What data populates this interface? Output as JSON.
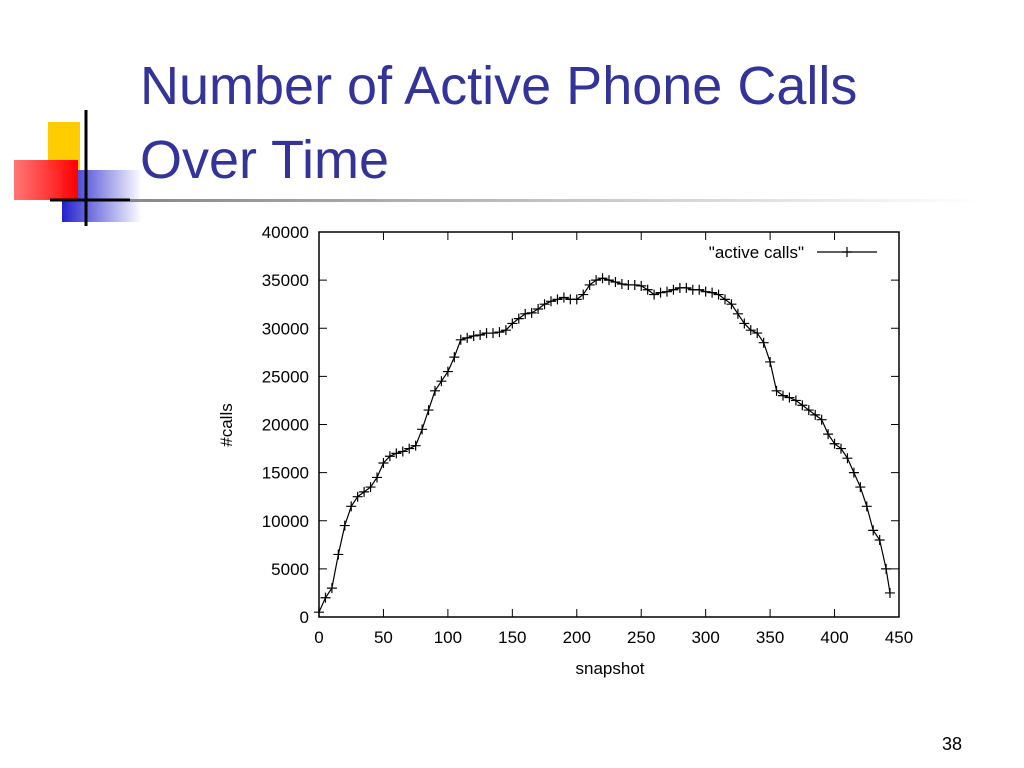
{
  "slide": {
    "title_lines": [
      "Number of Active Phone Calls",
      "Over Time"
    ],
    "page_number": "38"
  },
  "chart_data": {
    "type": "line",
    "xlabel": "snapshot",
    "ylabel": "#calls",
    "x": [
      0,
      5,
      10,
      15,
      20,
      25,
      30,
      35,
      40,
      45,
      50,
      55,
      60,
      65,
      70,
      75,
      80,
      85,
      90,
      95,
      100,
      105,
      110,
      115,
      120,
      125,
      130,
      135,
      140,
      145,
      150,
      155,
      160,
      165,
      170,
      175,
      180,
      185,
      190,
      195,
      200,
      205,
      210,
      215,
      220,
      225,
      230,
      235,
      240,
      245,
      250,
      255,
      260,
      265,
      270,
      275,
      280,
      285,
      290,
      295,
      300,
      305,
      310,
      315,
      320,
      325,
      330,
      335,
      340,
      345,
      350,
      355,
      360,
      365,
      370,
      375,
      380,
      385,
      390,
      395,
      400,
      405,
      410,
      415,
      420,
      425,
      430,
      435,
      440,
      443
    ],
    "series": [
      {
        "name": "\"active calls\"",
        "color": "#000000",
        "values": [
          500,
          2000,
          3000,
          6500,
          9500,
          11500,
          12500,
          13000,
          13500,
          14500,
          16000,
          16700,
          17000,
          17200,
          17500,
          17800,
          19500,
          21500,
          23500,
          24500,
          25500,
          27000,
          28800,
          29000,
          29200,
          29300,
          29500,
          29500,
          29600,
          29800,
          30500,
          31000,
          31500,
          31600,
          32000,
          32500,
          32800,
          33000,
          33200,
          33000,
          33000,
          33500,
          34500,
          35000,
          35200,
          35000,
          34800,
          34600,
          34500,
          34500,
          34400,
          34000,
          33500,
          33700,
          33800,
          34000,
          34200,
          34200,
          34000,
          34000,
          33800,
          33700,
          33500,
          33000,
          32500,
          31500,
          30500,
          29800,
          29500,
          28500,
          26500,
          23500,
          23000,
          22800,
          22500,
          22000,
          21500,
          21000,
          20500,
          19000,
          18000,
          17500,
          16500,
          15000,
          13500,
          11500,
          9000,
          8000,
          5000,
          2500
        ]
      }
    ],
    "xlim": [
      0,
      450
    ],
    "xticks": [
      0,
      50,
      100,
      150,
      200,
      250,
      300,
      350,
      400,
      450
    ],
    "ylim": [
      0,
      40000
    ],
    "yticks": [
      0,
      5000,
      10000,
      15000,
      20000,
      25000,
      30000,
      35000,
      40000
    ],
    "grid": false,
    "legend": "top-right"
  }
}
